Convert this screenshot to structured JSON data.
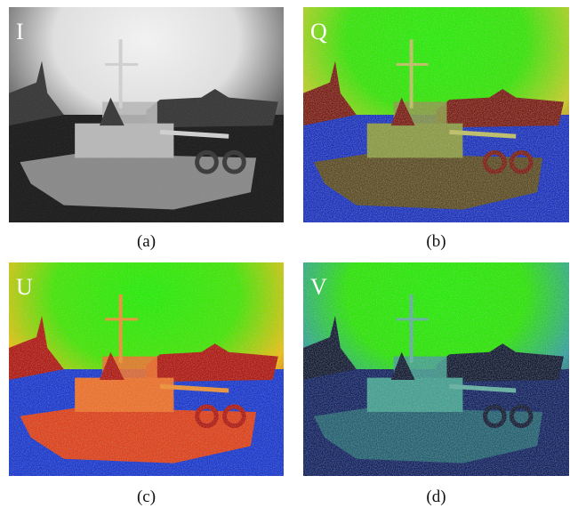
{
  "panels": [
    {
      "letter": "I",
      "caption": "(a)"
    },
    {
      "letter": "Q",
      "caption": "(b)"
    },
    {
      "letter": "U",
      "caption": "(c)"
    },
    {
      "letter": "V",
      "caption": "(d)"
    }
  ]
}
